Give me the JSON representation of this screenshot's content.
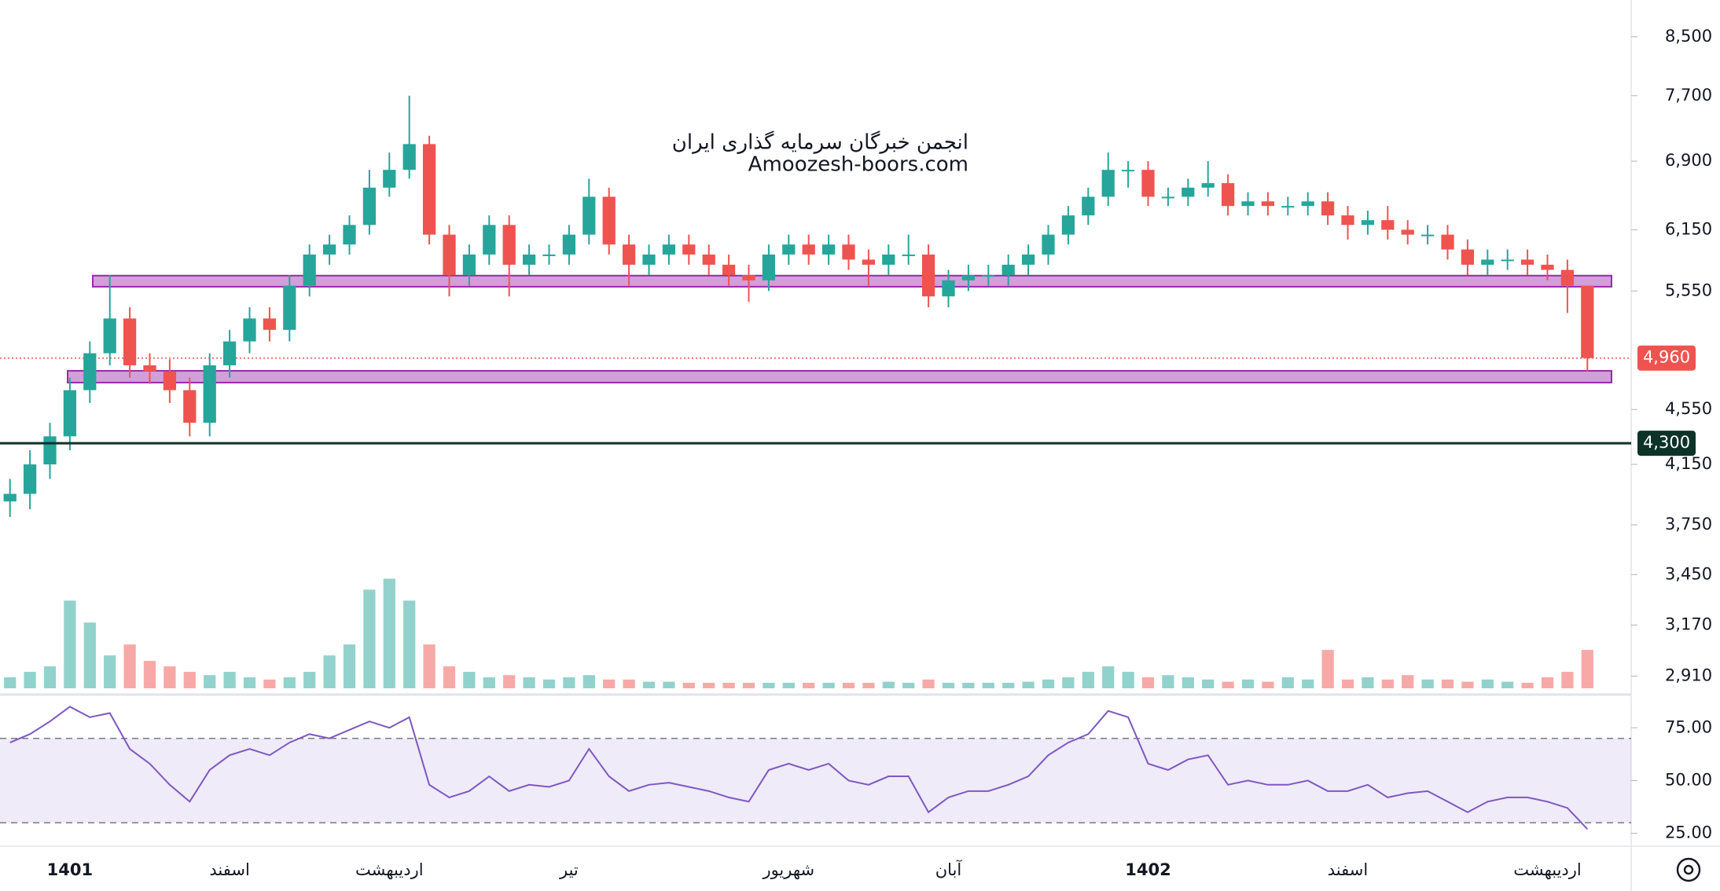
{
  "chart_data": {
    "type": "candlestick",
    "watermark": [
      "انجمن خبرگان سرمایه گذاری ایران",
      "Amoozesh-boors.com"
    ],
    "categories": [
      null,
      null,
      null,
      "1401",
      null,
      null,
      null,
      null,
      null,
      null,
      null,
      "اسفند",
      null,
      null,
      null,
      null,
      null,
      null,
      null,
      "اردیبهشت",
      null,
      null,
      null,
      null,
      null,
      null,
      null,
      null,
      "تیر",
      null,
      null,
      null,
      null,
      null,
      null,
      null,
      null,
      null,
      null,
      "شهریور",
      null,
      null,
      null,
      null,
      null,
      null,
      null,
      "آبان",
      null,
      null,
      null,
      null,
      null,
      null,
      null,
      null,
      null,
      "1402",
      null,
      null,
      null,
      null,
      null,
      null,
      null,
      null,
      null,
      "اسفند",
      null,
      null,
      null,
      null,
      null,
      null,
      null,
      null,
      null,
      "اردیبهشت",
      null,
      null
    ],
    "open": [
      3900,
      3950,
      4150,
      4350,
      4700,
      5000,
      5300,
      4900,
      4850,
      4700,
      4450,
      4900,
      5100,
      5300,
      5200,
      5600,
      5900,
      6000,
      6200,
      6600,
      6800,
      7100,
      6100,
      5700,
      5900,
      6200,
      5800,
      5900,
      5900,
      6100,
      6500,
      6000,
      5800,
      5900,
      6000,
      5900,
      5800,
      5700,
      5650,
      5900,
      6000,
      5900,
      6000,
      5850,
      5800,
      5900,
      5900,
      5500,
      5650,
      5700,
      5700,
      5800,
      5900,
      6100,
      6300,
      6500,
      6800,
      6800,
      6500,
      6500,
      6600,
      6650,
      6400,
      6450,
      6400,
      6400,
      6450,
      6300,
      6200,
      6250,
      6150,
      6100,
      6100,
      5950,
      5800,
      5850,
      5850,
      5800,
      5750,
      5600
    ],
    "high": [
      4050,
      4250,
      4450,
      4800,
      5100,
      5700,
      5400,
      5000,
      4950,
      4800,
      5000,
      5200,
      5400,
      5400,
      5700,
      6000,
      6100,
      6300,
      6800,
      7000,
      7700,
      7200,
      6200,
      6000,
      6300,
      6300,
      6000,
      6000,
      6200,
      6700,
      6600,
      6100,
      6000,
      6100,
      6100,
      6000,
      5900,
      5800,
      6000,
      6100,
      6100,
      6100,
      6100,
      5950,
      6000,
      6100,
      6000,
      5750,
      5800,
      5800,
      5900,
      6000,
      6200,
      6400,
      6600,
      7000,
      6900,
      6900,
      6600,
      6700,
      6900,
      6750,
      6550,
      6550,
      6500,
      6550,
      6550,
      6400,
      6350,
      6400,
      6250,
      6200,
      6200,
      6050,
      5950,
      5950,
      5950,
      5900,
      5850,
      5600
    ],
    "low": [
      3800,
      3850,
      4050,
      4250,
      4600,
      4900,
      4800,
      4750,
      4600,
      4350,
      4350,
      4800,
      5000,
      5100,
      5100,
      5500,
      5800,
      5900,
      6100,
      6500,
      6700,
      6000,
      5500,
      5600,
      5800,
      5500,
      5700,
      5800,
      5800,
      6000,
      5900,
      5600,
      5700,
      5800,
      5800,
      5700,
      5600,
      5450,
      5550,
      5800,
      5800,
      5800,
      5750,
      5600,
      5700,
      5800,
      5400,
      5400,
      5550,
      5600,
      5600,
      5700,
      5800,
      6000,
      6200,
      6400,
      6600,
      6400,
      6400,
      6400,
      6500,
      6300,
      6300,
      6300,
      6300,
      6300,
      6200,
      6050,
      6100,
      6050,
      6000,
      6000,
      5850,
      5700,
      5700,
      5750,
      5700,
      5650,
      5350,
      4850
    ],
    "close": [
      3950,
      4150,
      4350,
      4700,
      5000,
      5300,
      4900,
      4850,
      4700,
      4450,
      4900,
      5100,
      5300,
      5200,
      5600,
      5900,
      6000,
      6200,
      6600,
      6800,
      7100,
      6100,
      5700,
      5900,
      6200,
      5800,
      5900,
      5900,
      6100,
      6500,
      6000,
      5800,
      5900,
      6000,
      5900,
      5800,
      5700,
      5650,
      5900,
      6000,
      5900,
      6000,
      5850,
      5800,
      5900,
      5900,
      5500,
      5650,
      5700,
      5700,
      5800,
      5900,
      6100,
      6300,
      6500,
      6800,
      6800,
      6500,
      6500,
      6600,
      6650,
      6400,
      6450,
      6400,
      6400,
      6450,
      6300,
      6200,
      6250,
      6150,
      6100,
      6100,
      5950,
      5800,
      5850,
      5850,
      5800,
      5750,
      5600,
      4960
    ],
    "up_color": "#26a69a",
    "down_color": "#ef5350",
    "log_scale": true,
    "ylim": [
      2840,
      9040
    ],
    "yticks": [
      {
        "value": 8500,
        "label": "8,500"
      },
      {
        "value": 7700,
        "label": "7,700"
      },
      {
        "value": 6900,
        "label": "6,900"
      },
      {
        "value": 6150,
        "label": "6,150"
      },
      {
        "value": 5550,
        "label": "5,550"
      },
      {
        "value": 4550,
        "label": "4,550"
      },
      {
        "value": 4150,
        "label": "4,150"
      },
      {
        "value": 3750,
        "label": "3,750"
      },
      {
        "value": 3450,
        "label": "3,450"
      },
      {
        "value": 3170,
        "label": "3,170"
      },
      {
        "value": 2910,
        "label": "2,910"
      }
    ],
    "zones": [
      {
        "low": 5590,
        "high": 5695,
        "color": "#9c27b0"
      },
      {
        "low": 4760,
        "high": 4855,
        "color": "#9c27b0"
      }
    ],
    "hlines": [
      {
        "value": 4300,
        "label": "4,300",
        "color": "#0d3328"
      }
    ],
    "last_price": {
      "value": 4960,
      "label": "4,960",
      "color": "#ef5350"
    },
    "volume": {
      "vlim": [
        0,
        200
      ],
      "values": [
        10,
        15,
        20,
        80,
        60,
        30,
        40,
        25,
        20,
        15,
        12,
        15,
        10,
        8,
        10,
        15,
        30,
        40,
        90,
        100,
        80,
        40,
        20,
        15,
        10,
        12,
        10,
        8,
        10,
        12,
        8,
        8,
        6,
        6,
        5,
        5,
        5,
        5,
        5,
        5,
        5,
        5,
        5,
        5,
        6,
        5,
        8,
        5,
        5,
        5,
        5,
        6,
        8,
        10,
        15,
        20,
        15,
        10,
        12,
        10,
        8,
        6,
        8,
        6,
        10,
        8,
        35,
        8,
        10,
        8,
        12,
        8,
        8,
        6,
        8,
        6,
        5,
        10,
        15,
        35
      ]
    },
    "rsi": {
      "color": "#7e57c2",
      "ylim": [
        20,
        90
      ],
      "bands": [
        30,
        70
      ],
      "yticks": [
        {
          "value": 75,
          "label": "75.00"
        },
        {
          "value": 50,
          "label": "50.00"
        },
        {
          "value": 25,
          "label": "25.00"
        }
      ],
      "values": [
        68,
        72,
        78,
        85,
        80,
        82,
        65,
        58,
        48,
        40,
        55,
        62,
        65,
        62,
        68,
        72,
        70,
        74,
        78,
        75,
        80,
        48,
        42,
        45,
        52,
        45,
        48,
        47,
        50,
        65,
        52,
        45,
        48,
        49,
        47,
        45,
        42,
        40,
        55,
        58,
        55,
        58,
        50,
        48,
        52,
        52,
        35,
        42,
        45,
        45,
        48,
        52,
        62,
        68,
        72,
        83,
        80,
        58,
        55,
        60,
        62,
        48,
        50,
        48,
        48,
        50,
        45,
        45,
        48,
        42,
        44,
        45,
        40,
        35,
        40,
        42,
        42,
        40,
        37,
        27
      ]
    }
  }
}
